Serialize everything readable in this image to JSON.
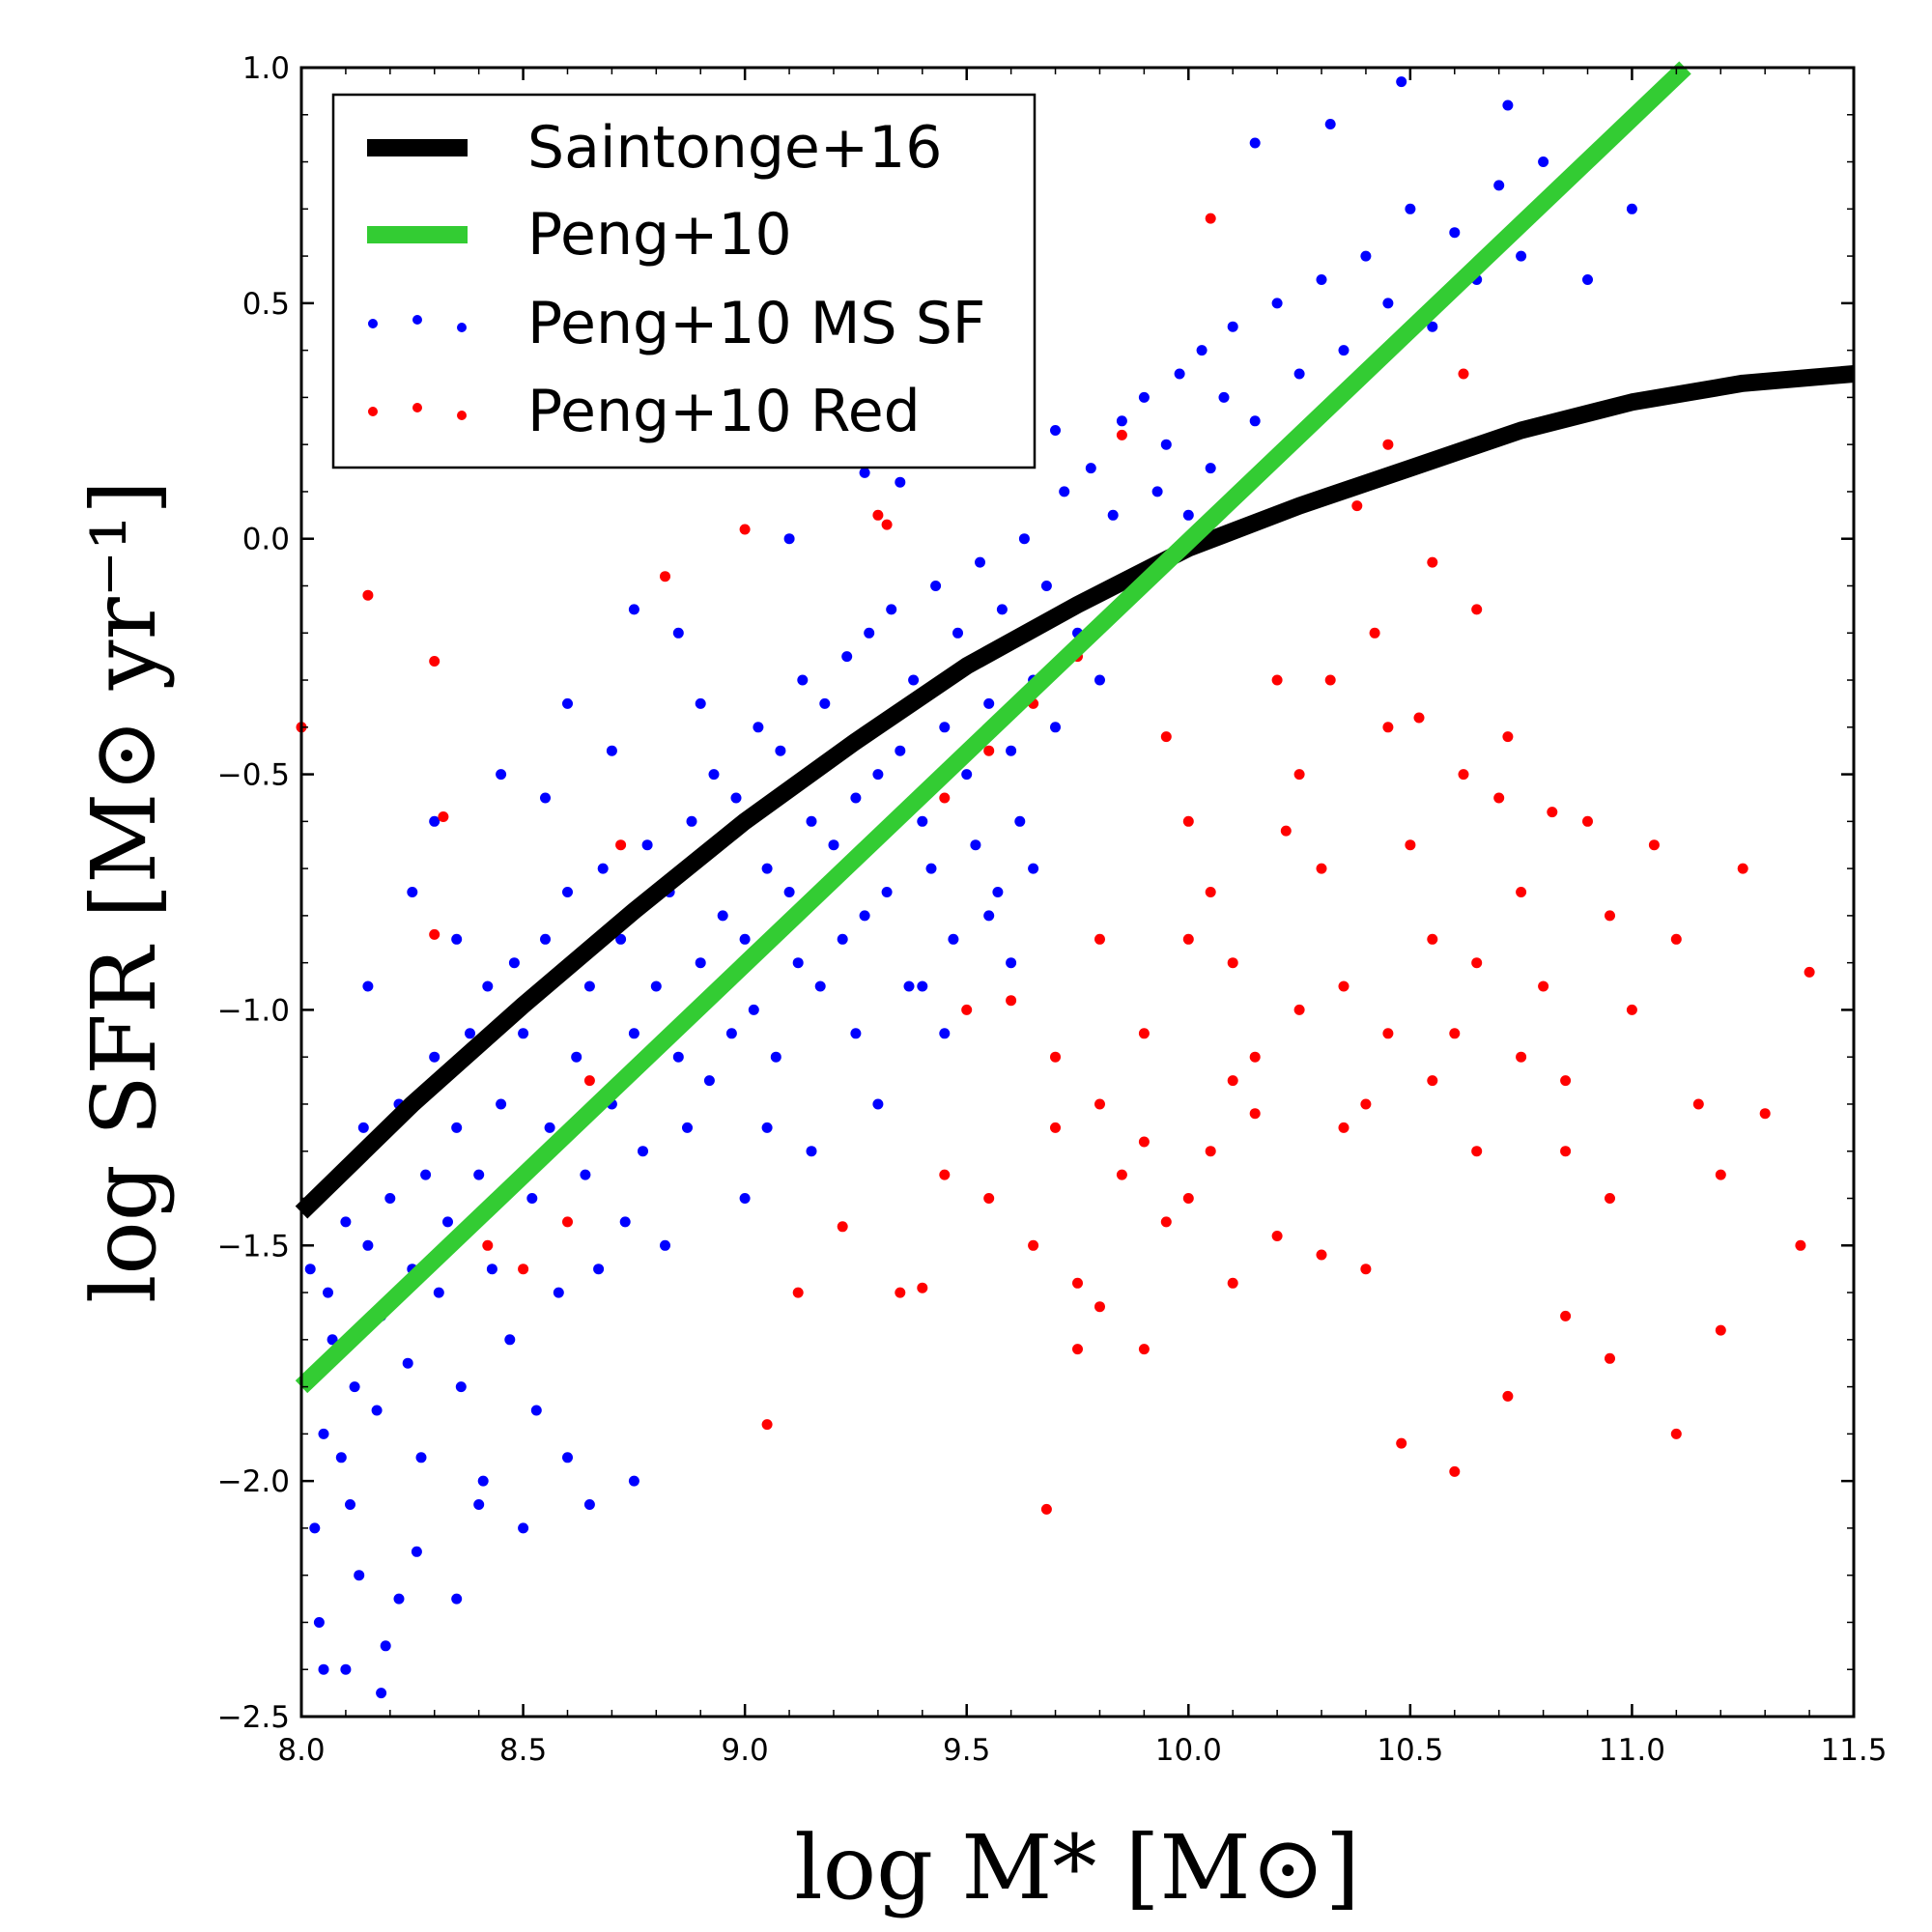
{
  "chart_data": {
    "type": "scatter",
    "xlabel": "log M* [M⊙]",
    "ylabel": "log SFR [M⊙ yr⁻¹]",
    "xlim": [
      8.0,
      11.5
    ],
    "ylim": [
      -2.5,
      1.0
    ],
    "x_ticks": [
      "8.0",
      "8.5",
      "9.0",
      "9.5",
      "10.0",
      "10.5",
      "11.0",
      "11.5"
    ],
    "y_ticks": [
      "−2.5",
      "−2.0",
      "−1.5",
      "−1.0",
      "−0.5",
      "0.0",
      "0.5",
      "1.0"
    ],
    "grid": false,
    "legend_position": "top-left",
    "series": [
      {
        "name": "Saintonge+16",
        "kind": "line",
        "color": "#000000",
        "x": [
          8.0,
          8.25,
          8.5,
          8.75,
          9.0,
          9.25,
          9.5,
          9.75,
          10.0,
          10.25,
          10.5,
          10.75,
          11.0,
          11.25,
          11.5
        ],
        "y": [
          -1.43,
          -1.2,
          -0.99,
          -0.79,
          -0.6,
          -0.43,
          -0.27,
          -0.14,
          -0.02,
          0.07,
          0.15,
          0.23,
          0.29,
          0.33,
          0.35
        ]
      },
      {
        "name": "Peng+10",
        "kind": "line",
        "color": "#33cc33",
        "x": [
          8.0,
          11.12
        ],
        "y": [
          -1.8,
          1.0
        ]
      },
      {
        "name": "Peng+10 MS SF",
        "kind": "scatter",
        "color": "#0000ff",
        "points": [
          [
            8.02,
            -1.55
          ],
          [
            8.05,
            -1.9
          ],
          [
            8.03,
            -2.1
          ],
          [
            8.07,
            -1.7
          ],
          [
            8.1,
            -1.45
          ],
          [
            8.04,
            -2.3
          ],
          [
            8.08,
            -1.35
          ],
          [
            8.12,
            -1.8
          ],
          [
            8.06,
            -1.6
          ],
          [
            8.15,
            -1.5
          ],
          [
            8.11,
            -2.05
          ],
          [
            8.14,
            -1.25
          ],
          [
            8.18,
            -1.65
          ],
          [
            8.09,
            -1.95
          ],
          [
            8.2,
            -1.4
          ],
          [
            8.17,
            -1.85
          ],
          [
            8.22,
            -1.2
          ],
          [
            8.25,
            -1.55
          ],
          [
            8.13,
            -2.2
          ],
          [
            8.28,
            -1.35
          ],
          [
            8.24,
            -1.75
          ],
          [
            8.3,
            -1.1
          ],
          [
            8.27,
            -1.95
          ],
          [
            8.33,
            -1.45
          ],
          [
            8.19,
            -2.35
          ],
          [
            8.35,
            -1.25
          ],
          [
            8.31,
            -1.6
          ],
          [
            8.38,
            -1.05
          ],
          [
            8.36,
            -1.8
          ],
          [
            8.4,
            -1.35
          ],
          [
            8.42,
            -0.95
          ],
          [
            8.26,
            -2.15
          ],
          [
            8.45,
            -1.2
          ],
          [
            8.43,
            -1.55
          ],
          [
            8.48,
            -0.9
          ],
          [
            8.47,
            -1.7
          ],
          [
            8.5,
            -1.05
          ],
          [
            8.52,
            -1.4
          ],
          [
            8.41,
            -2.0
          ],
          [
            8.55,
            -0.85
          ],
          [
            8.56,
            -1.25
          ],
          [
            8.58,
            -1.6
          ],
          [
            8.6,
            -0.75
          ],
          [
            8.62,
            -1.1
          ],
          [
            8.53,
            -1.85
          ],
          [
            8.65,
            -0.95
          ],
          [
            8.64,
            -1.35
          ],
          [
            8.68,
            -0.7
          ],
          [
            8.7,
            -1.2
          ],
          [
            8.67,
            -1.55
          ],
          [
            8.72,
            -0.85
          ],
          [
            8.75,
            -1.05
          ],
          [
            8.73,
            -1.45
          ],
          [
            8.78,
            -0.65
          ],
          [
            8.8,
            -0.95
          ],
          [
            8.77,
            -1.3
          ],
          [
            8.83,
            -0.75
          ],
          [
            8.85,
            -1.1
          ],
          [
            8.82,
            -1.5
          ],
          [
            8.88,
            -0.6
          ],
          [
            8.9,
            -0.9
          ],
          [
            8.87,
            -1.25
          ],
          [
            8.93,
            -0.5
          ],
          [
            8.95,
            -0.8
          ],
          [
            8.92,
            -1.15
          ],
          [
            8.98,
            -0.55
          ],
          [
            9.0,
            -0.85
          ],
          [
            8.97,
            -1.05
          ],
          [
            9.03,
            -0.4
          ],
          [
            9.05,
            -0.7
          ],
          [
            9.02,
            -1.0
          ],
          [
            9.08,
            -0.45
          ],
          [
            9.1,
            -0.75
          ],
          [
            9.07,
            -1.1
          ],
          [
            9.13,
            -0.3
          ],
          [
            9.15,
            -0.6
          ],
          [
            9.12,
            -0.9
          ],
          [
            9.18,
            -0.35
          ],
          [
            9.2,
            -0.65
          ],
          [
            9.17,
            -0.95
          ],
          [
            9.23,
            -0.25
          ],
          [
            9.25,
            -0.55
          ],
          [
            9.22,
            -0.85
          ],
          [
            9.28,
            -0.2
          ],
          [
            9.3,
            -0.5
          ],
          [
            9.27,
            -0.8
          ],
          [
            9.33,
            -0.15
          ],
          [
            9.35,
            -0.45
          ],
          [
            9.32,
            -0.75
          ],
          [
            9.38,
            -0.3
          ],
          [
            9.4,
            -0.6
          ],
          [
            9.37,
            -0.95
          ],
          [
            9.43,
            -0.1
          ],
          [
            9.45,
            -0.4
          ],
          [
            9.42,
            -0.7
          ],
          [
            9.48,
            -0.2
          ],
          [
            9.5,
            -0.5
          ],
          [
            9.47,
            -0.85
          ],
          [
            9.53,
            -0.05
          ],
          [
            9.55,
            -0.35
          ],
          [
            9.52,
            -0.65
          ],
          [
            9.58,
            -0.15
          ],
          [
            9.6,
            -0.45
          ],
          [
            9.57,
            -0.75
          ],
          [
            9.63,
            0.0
          ],
          [
            9.65,
            -0.3
          ],
          [
            9.62,
            -0.6
          ],
          [
            9.68,
            -0.1
          ],
          [
            9.7,
            -0.4
          ],
          [
            9.72,
            0.1
          ],
          [
            9.75,
            -0.2
          ],
          [
            9.78,
            0.15
          ],
          [
            9.8,
            -0.3
          ],
          [
            9.83,
            0.05
          ],
          [
            9.85,
            0.25
          ],
          [
            9.88,
            -0.1
          ],
          [
            9.9,
            0.3
          ],
          [
            9.93,
            0.1
          ],
          [
            9.95,
            0.2
          ],
          [
            9.98,
            0.35
          ],
          [
            10.0,
            0.05
          ],
          [
            10.03,
            0.4
          ],
          [
            10.05,
            0.15
          ],
          [
            10.08,
            0.3
          ],
          [
            10.1,
            0.45
          ],
          [
            10.15,
            0.25
          ],
          [
            10.2,
            0.5
          ],
          [
            10.25,
            0.35
          ],
          [
            10.3,
            0.55
          ],
          [
            10.35,
            0.4
          ],
          [
            10.4,
            0.6
          ],
          [
            10.45,
            0.5
          ],
          [
            10.5,
            0.7
          ],
          [
            10.55,
            0.45
          ],
          [
            10.6,
            0.65
          ],
          [
            10.65,
            0.55
          ],
          [
            10.7,
            0.75
          ],
          [
            10.75,
            0.6
          ],
          [
            10.8,
            0.8
          ],
          [
            10.9,
            0.55
          ],
          [
            11.0,
            0.7
          ],
          [
            10.48,
            0.97
          ],
          [
            10.72,
            0.92
          ],
          [
            10.32,
            0.88
          ],
          [
            10.15,
            0.84
          ],
          [
            9.35,
            0.12
          ],
          [
            9.27,
            0.14
          ],
          [
            9.7,
            0.23
          ],
          [
            9.1,
            0.0
          ],
          [
            8.85,
            -0.2
          ],
          [
            8.75,
            -0.15
          ],
          [
            8.6,
            -0.35
          ],
          [
            8.45,
            -0.5
          ],
          [
            8.3,
            -0.6
          ],
          [
            8.25,
            -0.75
          ],
          [
            8.15,
            -0.95
          ],
          [
            8.35,
            -0.85
          ],
          [
            8.55,
            -0.55
          ],
          [
            8.7,
            -0.45
          ],
          [
            8.9,
            -0.35
          ],
          [
            8.1,
            -2.4
          ],
          [
            8.18,
            -2.45
          ],
          [
            8.05,
            -2.4
          ],
          [
            8.35,
            -2.25
          ],
          [
            8.5,
            -2.1
          ],
          [
            8.65,
            -2.05
          ],
          [
            8.75,
            -2.0
          ],
          [
            8.6,
            -1.95
          ],
          [
            8.4,
            -2.05
          ],
          [
            8.22,
            -2.25
          ],
          [
            9.0,
            -1.4
          ],
          [
            9.15,
            -1.3
          ],
          [
            9.3,
            -1.2
          ],
          [
            9.45,
            -1.05
          ],
          [
            9.6,
            -0.9
          ],
          [
            9.05,
            -1.25
          ],
          [
            9.25,
            -1.05
          ],
          [
            9.4,
            -0.95
          ],
          [
            9.55,
            -0.8
          ],
          [
            9.65,
            -0.7
          ]
        ]
      },
      {
        "name": "Peng+10 Red",
        "kind": "scatter",
        "color": "#ff0000",
        "points": [
          [
            8.0,
            -0.4
          ],
          [
            8.15,
            -0.12
          ],
          [
            8.3,
            -0.26
          ],
          [
            8.32,
            -0.59
          ],
          [
            8.3,
            -0.84
          ],
          [
            8.82,
            -0.08
          ],
          [
            9.0,
            0.02
          ],
          [
            9.3,
            0.05
          ],
          [
            9.05,
            -1.88
          ],
          [
            9.12,
            -1.6
          ],
          [
            9.22,
            -1.46
          ],
          [
            9.35,
            -1.6
          ],
          [
            9.4,
            -1.59
          ],
          [
            9.68,
            -2.06
          ],
          [
            9.75,
            -1.72
          ],
          [
            9.85,
            0.22
          ],
          [
            9.8,
            -1.63
          ],
          [
            9.9,
            -1.72
          ],
          [
            9.95,
            -0.42
          ],
          [
            10.0,
            -0.6
          ],
          [
            10.05,
            -0.75
          ],
          [
            10.1,
            -0.9
          ],
          [
            10.15,
            -1.1
          ],
          [
            10.2,
            -0.3
          ],
          [
            10.25,
            -0.5
          ],
          [
            10.3,
            -0.7
          ],
          [
            10.35,
            -0.95
          ],
          [
            10.4,
            -1.2
          ],
          [
            10.45,
            -0.4
          ],
          [
            10.5,
            -0.65
          ],
          [
            10.55,
            -0.85
          ],
          [
            10.6,
            -1.05
          ],
          [
            10.65,
            -1.3
          ],
          [
            10.7,
            -0.55
          ],
          [
            10.75,
            -0.75
          ],
          [
            10.8,
            -0.95
          ],
          [
            10.85,
            -1.15
          ],
          [
            10.9,
            -0.6
          ],
          [
            10.95,
            -0.8
          ],
          [
            11.0,
            -1.0
          ],
          [
            11.05,
            -0.65
          ],
          [
            11.1,
            -0.85
          ],
          [
            11.15,
            -1.2
          ],
          [
            11.2,
            -1.35
          ],
          [
            11.25,
            -0.7
          ],
          [
            11.3,
            -1.22
          ],
          [
            11.4,
            -0.92
          ],
          [
            11.38,
            -1.5
          ],
          [
            11.2,
            -1.68
          ],
          [
            11.1,
            -1.9
          ],
          [
            10.6,
            -1.98
          ],
          [
            10.48,
            -1.92
          ],
          [
            10.72,
            -1.82
          ],
          [
            10.95,
            -1.74
          ],
          [
            10.85,
            -1.65
          ],
          [
            10.4,
            -1.55
          ],
          [
            10.3,
            -1.52
          ],
          [
            10.2,
            -1.48
          ],
          [
            10.1,
            -1.58
          ],
          [
            10.0,
            -1.4
          ],
          [
            9.9,
            -1.28
          ],
          [
            9.8,
            -1.2
          ],
          [
            9.7,
            -1.1
          ],
          [
            9.6,
            -0.98
          ],
          [
            9.55,
            -1.4
          ],
          [
            9.45,
            -1.35
          ],
          [
            9.65,
            -1.5
          ],
          [
            9.75,
            -1.58
          ],
          [
            9.85,
            -1.35
          ],
          [
            9.95,
            -1.45
          ],
          [
            10.05,
            -1.3
          ],
          [
            10.15,
            -1.22
          ],
          [
            10.25,
            -1.0
          ],
          [
            10.35,
            -1.25
          ],
          [
            10.45,
            -1.05
          ],
          [
            10.55,
            -1.15
          ],
          [
            10.65,
            -0.9
          ],
          [
            10.75,
            -1.1
          ],
          [
            10.85,
            -1.3
          ],
          [
            10.95,
            -1.4
          ],
          [
            10.22,
            -0.62
          ],
          [
            10.32,
            -0.3
          ],
          [
            10.42,
            -0.2
          ],
          [
            10.52,
            -0.38
          ],
          [
            10.62,
            -0.5
          ],
          [
            10.72,
            -0.42
          ],
          [
            10.82,
            -0.58
          ],
          [
            10.38,
            0.07
          ],
          [
            10.45,
            0.2
          ],
          [
            10.55,
            -0.05
          ],
          [
            10.65,
            -0.15
          ],
          [
            10.05,
            0.68
          ],
          [
            10.62,
            0.35
          ],
          [
            9.32,
            0.03
          ],
          [
            8.72,
            -0.65
          ],
          [
            8.42,
            -1.5
          ],
          [
            8.5,
            -1.55
          ],
          [
            8.6,
            -1.45
          ],
          [
            8.55,
            -1.3
          ],
          [
            8.65,
            -1.15
          ],
          [
            9.45,
            -0.55
          ],
          [
            9.55,
            -0.45
          ],
          [
            9.65,
            -0.35
          ],
          [
            9.75,
            -0.25
          ],
          [
            9.5,
            -1.0
          ],
          [
            9.7,
            -1.25
          ],
          [
            9.8,
            -0.85
          ],
          [
            9.9,
            -1.05
          ],
          [
            10.0,
            -0.85
          ],
          [
            10.1,
            -1.15
          ]
        ]
      }
    ]
  }
}
